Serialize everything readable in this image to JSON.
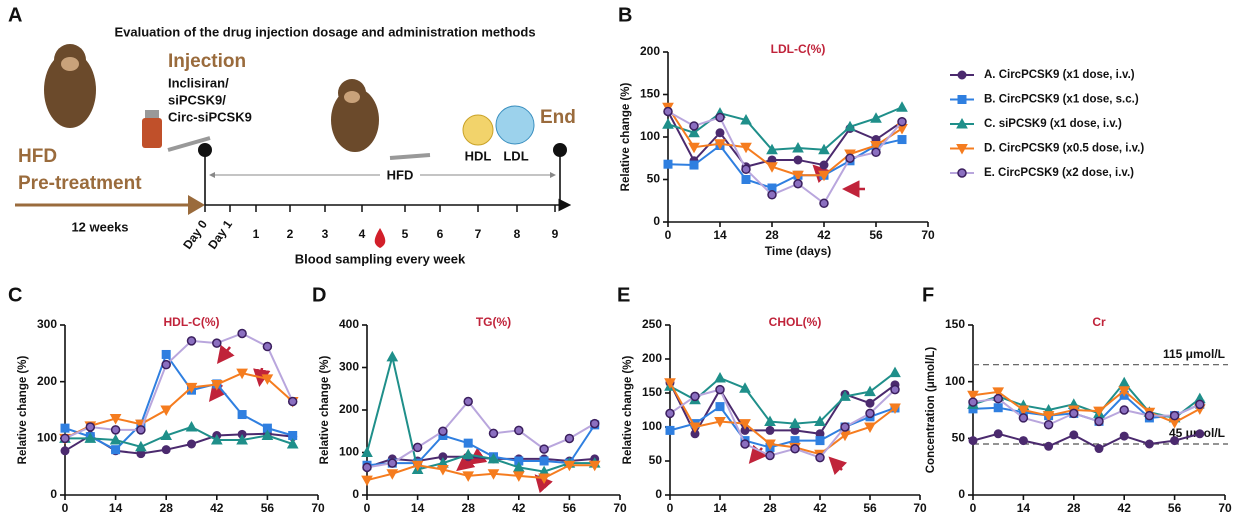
{
  "panel_a": {
    "letter": "A",
    "title": "Evaluation of the drug injection dosage and administration methods",
    "injection": "Injection",
    "drugs": [
      "Inclisiran/",
      "siPCSK9/",
      "Circ-siPCSK9"
    ],
    "end": "End",
    "pretreatment": [
      "HFD",
      "Pre-treatment"
    ],
    "duration": "12 weeks",
    "diet": "HFD",
    "particles": [
      "HDL",
      "LDL"
    ],
    "days": [
      "Day 0",
      "Day 1",
      "1",
      "2",
      "3",
      "4",
      "5",
      "6",
      "7",
      "8",
      "9"
    ],
    "sampling": "Blood sampling every week"
  },
  "chart_data": [
    {
      "type": "line",
      "panel": "B",
      "title": "LDL-C(%)",
      "x_label": "Time (days)",
      "y_label": "Relative change (%)",
      "xlim": [
        0,
        70
      ],
      "xticks": [
        0,
        14,
        28,
        42,
        56,
        70
      ],
      "ylim": [
        0,
        200
      ],
      "yticks": [
        0,
        50,
        100,
        150,
        200
      ],
      "legend": "right",
      "x": [
        0,
        7,
        14,
        21,
        28,
        35,
        42,
        49,
        56,
        63
      ],
      "series": [
        {
          "name": "A. CircPCSK9 (x1 dose, i.v.)",
          "color": "#4b2a6e",
          "marker": "circle",
          "values": [
            130,
            72,
            105,
            65,
            73,
            73,
            67,
            110,
            97,
            118
          ]
        },
        {
          "name": "B. CircPCSK9 (x1 dose, s.c.)",
          "color": "#2f7fe0",
          "marker": "square",
          "values": [
            68,
            67,
            90,
            50,
            40,
            55,
            55,
            72,
            90,
            97
          ]
        },
        {
          "name": "C. siPCSK9 (x1 dose, i.v.)",
          "color": "#1f8f8a",
          "marker": "triangle",
          "values": [
            115,
            105,
            128,
            120,
            85,
            87,
            85,
            112,
            122,
            135
          ]
        },
        {
          "name": "D. CircPCSK9 (x0.5 dose, i.v.)",
          "color": "#f57c1f",
          "marker": "triangle-down",
          "values": [
            135,
            88,
            92,
            88,
            65,
            55,
            55,
            80,
            90,
            110
          ]
        },
        {
          "name": "E. CircPCSK9 (x2 dose, i.v.)",
          "color": "#b9a6dd",
          "marker": "circle",
          "marker_fill": "#8b6fc0",
          "marker_edge": "#3b1f5e",
          "values": [
            130,
            113,
            123,
            62,
            32,
            45,
            22,
            75,
            82,
            118
          ]
        }
      ]
    },
    {
      "type": "line",
      "panel": "C",
      "title": "HDL-C(%)",
      "y_label": "Relative change (%)",
      "xlim": [
        0,
        70
      ],
      "xticks": [
        0,
        14,
        28,
        42,
        56,
        70
      ],
      "ylim": [
        0,
        300
      ],
      "yticks": [
        0,
        100,
        200,
        300
      ],
      "x": [
        0,
        7,
        14,
        21,
        28,
        35,
        42,
        49,
        56,
        63
      ],
      "series": [
        {
          "color": "#4b2a6e",
          "marker": "circle",
          "values": [
            78,
            105,
            78,
            73,
            80,
            90,
            105,
            107,
            108,
            103
          ]
        },
        {
          "color": "#2f7fe0",
          "marker": "square",
          "values": [
            118,
            103,
            80,
            125,
            248,
            185,
            196,
            142,
            118,
            105
          ]
        },
        {
          "color": "#1f8f8a",
          "marker": "triangle",
          "values": [
            100,
            100,
            97,
            85,
            105,
            120,
            97,
            97,
            105,
            90
          ]
        },
        {
          "color": "#f57c1f",
          "marker": "triangle-down",
          "values": [
            100,
            122,
            135,
            125,
            150,
            190,
            195,
            215,
            205,
            165
          ]
        },
        {
          "color": "#b9a6dd",
          "marker": "circle",
          "marker_fill": "#8b6fc0",
          "marker_edge": "#3b1f5e",
          "values": [
            100,
            120,
            115,
            115,
            230,
            272,
            268,
            285,
            262,
            165
          ]
        }
      ]
    },
    {
      "type": "line",
      "panel": "D",
      "title": "TG(%)",
      "y_label": "Relative change (%)",
      "xlim": [
        0,
        70
      ],
      "xticks": [
        0,
        14,
        28,
        42,
        56,
        70
      ],
      "ylim": [
        0,
        400
      ],
      "yticks": [
        0,
        100,
        200,
        300,
        400
      ],
      "x": [
        0,
        7,
        14,
        21,
        28,
        35,
        42,
        49,
        56,
        63
      ],
      "series": [
        {
          "color": "#4b2a6e",
          "marker": "circle",
          "values": [
            65,
            85,
            80,
            90,
            90,
            85,
            85,
            85,
            80,
            85
          ]
        },
        {
          "color": "#2f7fe0",
          "marker": "square",
          "values": [
            70,
            75,
            75,
            140,
            122,
            90,
            80,
            80,
            75,
            165
          ]
        },
        {
          "color": "#1f8f8a",
          "marker": "triangle",
          "values": [
            100,
            325,
            60,
            75,
            95,
            85,
            65,
            55,
            75,
            75
          ]
        },
        {
          "color": "#f57c1f",
          "marker": "triangle-down",
          "values": [
            35,
            50,
            70,
            60,
            45,
            50,
            45,
            40,
            70,
            70
          ]
        },
        {
          "color": "#b9a6dd",
          "marker": "circle",
          "marker_fill": "#8b6fc0",
          "marker_edge": "#3b1f5e",
          "values": [
            65,
            75,
            112,
            150,
            220,
            145,
            152,
            108,
            133,
            168
          ]
        }
      ]
    },
    {
      "type": "line",
      "panel": "E",
      "title": "CHOL(%)",
      "y_label": "Relative change (%)",
      "xlim": [
        0,
        70
      ],
      "xticks": [
        0,
        14,
        28,
        42,
        56,
        70
      ],
      "ylim": [
        0,
        250
      ],
      "yticks": [
        0,
        50,
        100,
        150,
        200,
        250
      ],
      "x": [
        0,
        7,
        14,
        21,
        28,
        35,
        42,
        49,
        56,
        63
      ],
      "series": [
        {
          "color": "#4b2a6e",
          "marker": "circle",
          "values": [
            165,
            90,
            155,
            95,
            95,
            95,
            90,
            148,
            135,
            162
          ]
        },
        {
          "color": "#2f7fe0",
          "marker": "square",
          "values": [
            95,
            105,
            130,
            80,
            70,
            80,
            80,
            100,
            115,
            128
          ]
        },
        {
          "color": "#1f8f8a",
          "marker": "triangle",
          "values": [
            160,
            140,
            172,
            157,
            108,
            105,
            108,
            145,
            152,
            180
          ]
        },
        {
          "color": "#f57c1f",
          "marker": "triangle-down",
          "values": [
            165,
            100,
            108,
            105,
            75,
            70,
            60,
            88,
            100,
            128
          ]
        },
        {
          "color": "#b9a6dd",
          "marker": "circle",
          "marker_fill": "#8b6fc0",
          "marker_edge": "#3b1f5e",
          "values": [
            120,
            145,
            155,
            75,
            58,
            68,
            55,
            100,
            120,
            155
          ]
        }
      ]
    },
    {
      "type": "line",
      "panel": "F",
      "title": "Cr",
      "y_label": "Concentration (μmol/L)",
      "xlim": [
        0,
        70
      ],
      "xticks": [
        0,
        14,
        28,
        42,
        56,
        70
      ],
      "ylim": [
        0,
        150
      ],
      "yticks": [
        0,
        50,
        100,
        150
      ],
      "reference_lines": [
        {
          "value": 115,
          "label": "115 μmol/L"
        },
        {
          "value": 45,
          "label": "45 μmol/L"
        }
      ],
      "x": [
        0,
        7,
        14,
        21,
        28,
        35,
        42,
        49,
        56,
        63
      ],
      "series": [
        {
          "color": "#4b2a6e",
          "marker": "circle",
          "values": [
            48,
            54,
            48,
            43,
            53,
            41,
            52,
            45,
            48,
            54
          ]
        },
        {
          "color": "#2f7fe0",
          "marker": "square",
          "values": [
            76,
            77,
            73,
            70,
            72,
            65,
            88,
            68,
            70,
            80
          ]
        },
        {
          "color": "#1f8f8a",
          "marker": "triangle",
          "values": [
            80,
            87,
            79,
            75,
            80,
            72,
            99,
            73,
            68,
            85
          ]
        },
        {
          "color": "#f57c1f",
          "marker": "triangle-down",
          "values": [
            88,
            91,
            75,
            70,
            75,
            74,
            92,
            73,
            64,
            76
          ]
        },
        {
          "color": "#b9a6dd",
          "marker": "circle",
          "marker_fill": "#8b6fc0",
          "marker_edge": "#3b1f5e",
          "values": [
            82,
            85,
            68,
            62,
            72,
            65,
            75,
            70,
            70,
            80
          ]
        }
      ]
    }
  ]
}
